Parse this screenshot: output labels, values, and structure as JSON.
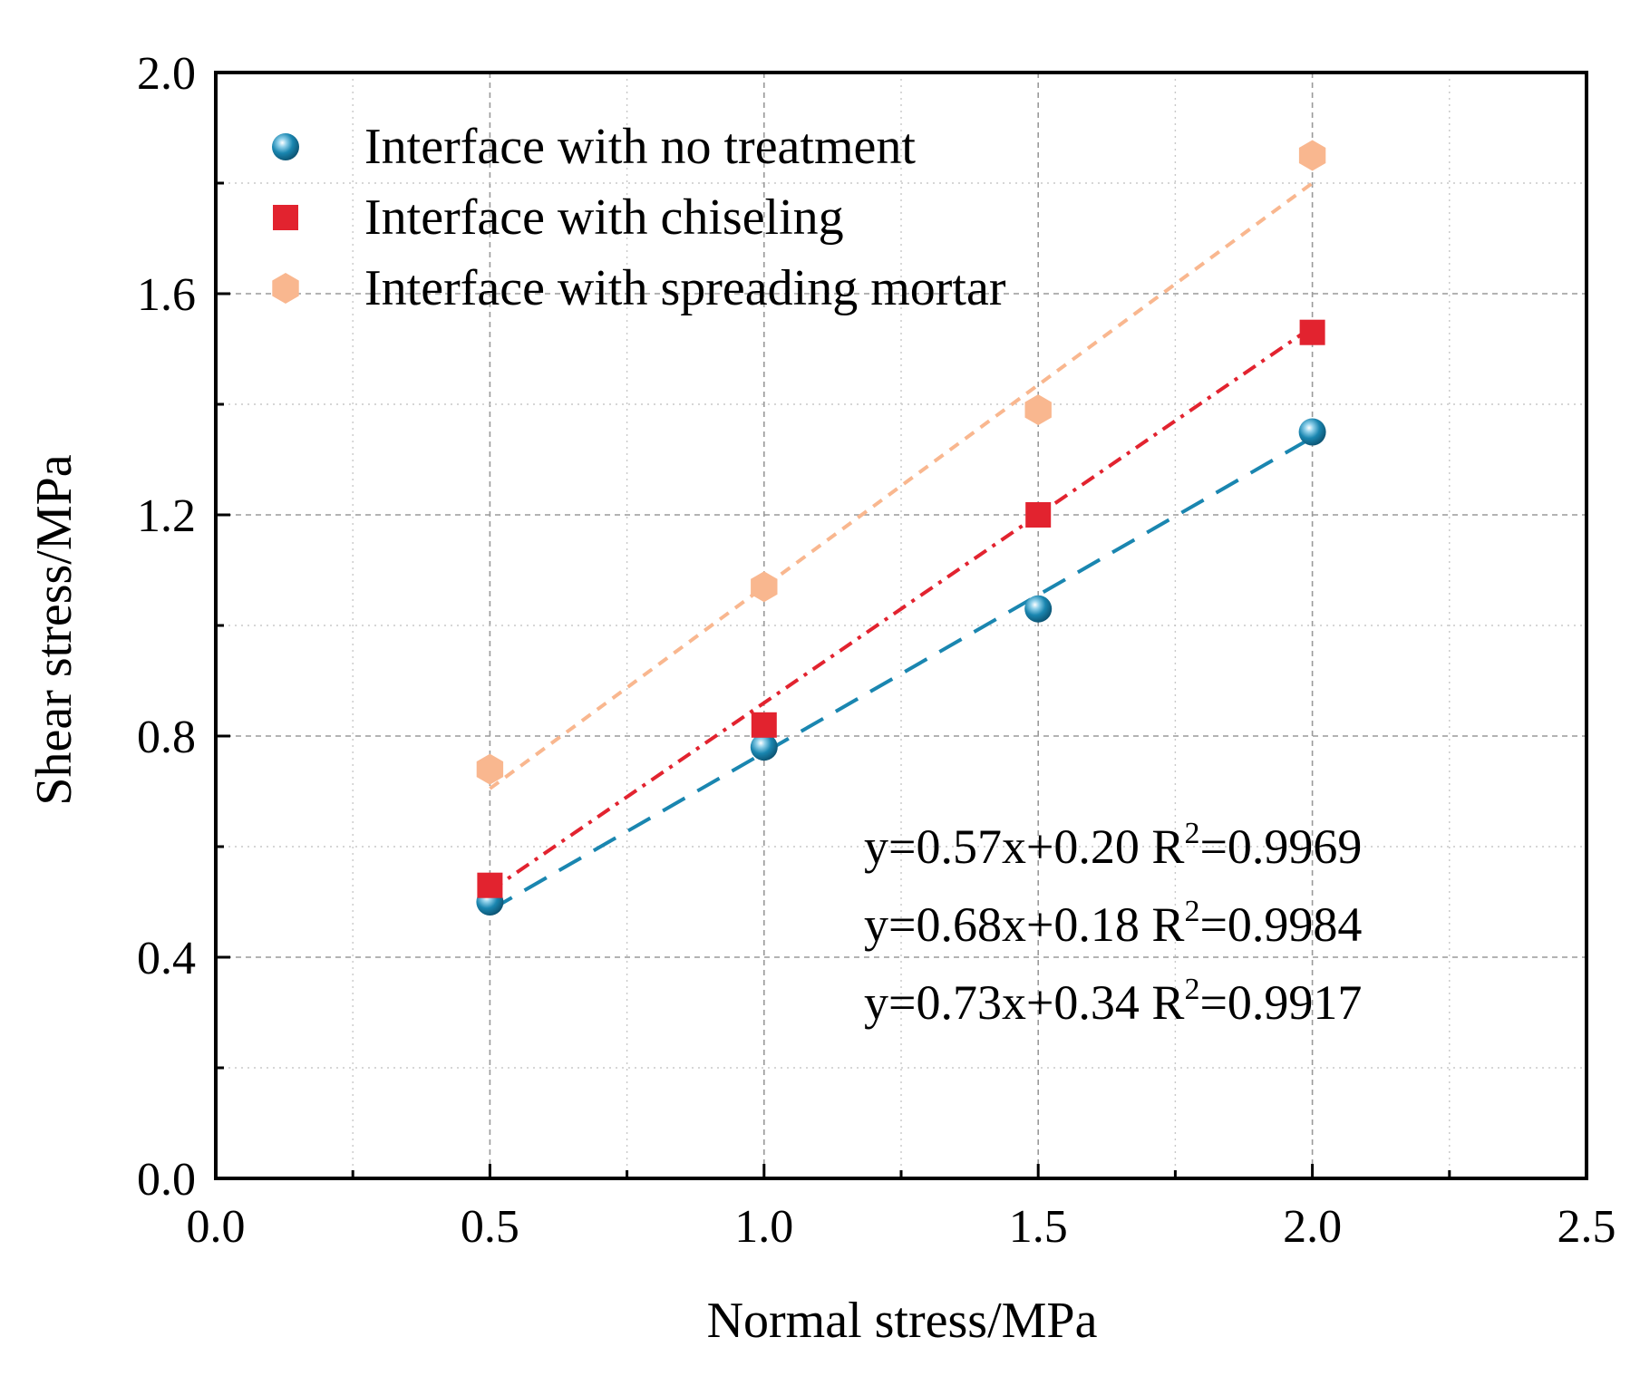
{
  "colors": {
    "no_treatment": "#1a86b0",
    "chiseling": "#e2232f",
    "spreading_mortar": "#f9b78f",
    "grid": "#9a9a9a",
    "axis": "#000000"
  },
  "chart_data": {
    "type": "scatter",
    "title": "",
    "xlabel": "Normal stress/MPa",
    "ylabel": "Shear stress/MPa",
    "xlim": [
      0.0,
      2.5
    ],
    "ylim": [
      0.0,
      2.0
    ],
    "xticks": [
      "0.0",
      "0.5",
      "1.0",
      "1.5",
      "2.0",
      "2.5"
    ],
    "yticks": [
      "0.0",
      "0.4",
      "0.8",
      "1.2",
      "1.6",
      "2.0"
    ],
    "grid": true,
    "legend_position": "top-left",
    "series": [
      {
        "name": "Interface with no treatment",
        "marker": "sphere",
        "color_key": "no_treatment",
        "line_style": "dashed",
        "x": [
          0.5,
          1.0,
          1.5,
          2.0
        ],
        "y": [
          0.5,
          0.78,
          1.03,
          1.35
        ],
        "fit": {
          "slope": 0.57,
          "intercept": 0.2
        }
      },
      {
        "name": "Interface with chiseling",
        "marker": "square",
        "color_key": "chiseling",
        "line_style": "dash-dot",
        "x": [
          0.5,
          1.0,
          1.5,
          2.0
        ],
        "y": [
          0.53,
          0.82,
          1.2,
          1.53
        ],
        "fit": {
          "slope": 0.68,
          "intercept": 0.18
        }
      },
      {
        "name": "Interface with spreading mortar",
        "marker": "hexagon",
        "color_key": "spreading_mortar",
        "line_style": "short-dash",
        "x": [
          0.5,
          1.0,
          1.5,
          2.0
        ],
        "y": [
          0.74,
          1.07,
          1.39,
          1.85
        ],
        "fit": {
          "slope": 0.73,
          "intercept": 0.34
        }
      }
    ],
    "annotations": [
      {
        "prefix": "y=0.57x+0.20 R",
        "sup": "2",
        "suffix": "=0.9969"
      },
      {
        "prefix": "y=0.68x+0.18 R",
        "sup": "2",
        "suffix": "=0.9984"
      },
      {
        "prefix": "y=0.73x+0.34 R",
        "sup": "2",
        "suffix": "=0.9917"
      }
    ]
  }
}
